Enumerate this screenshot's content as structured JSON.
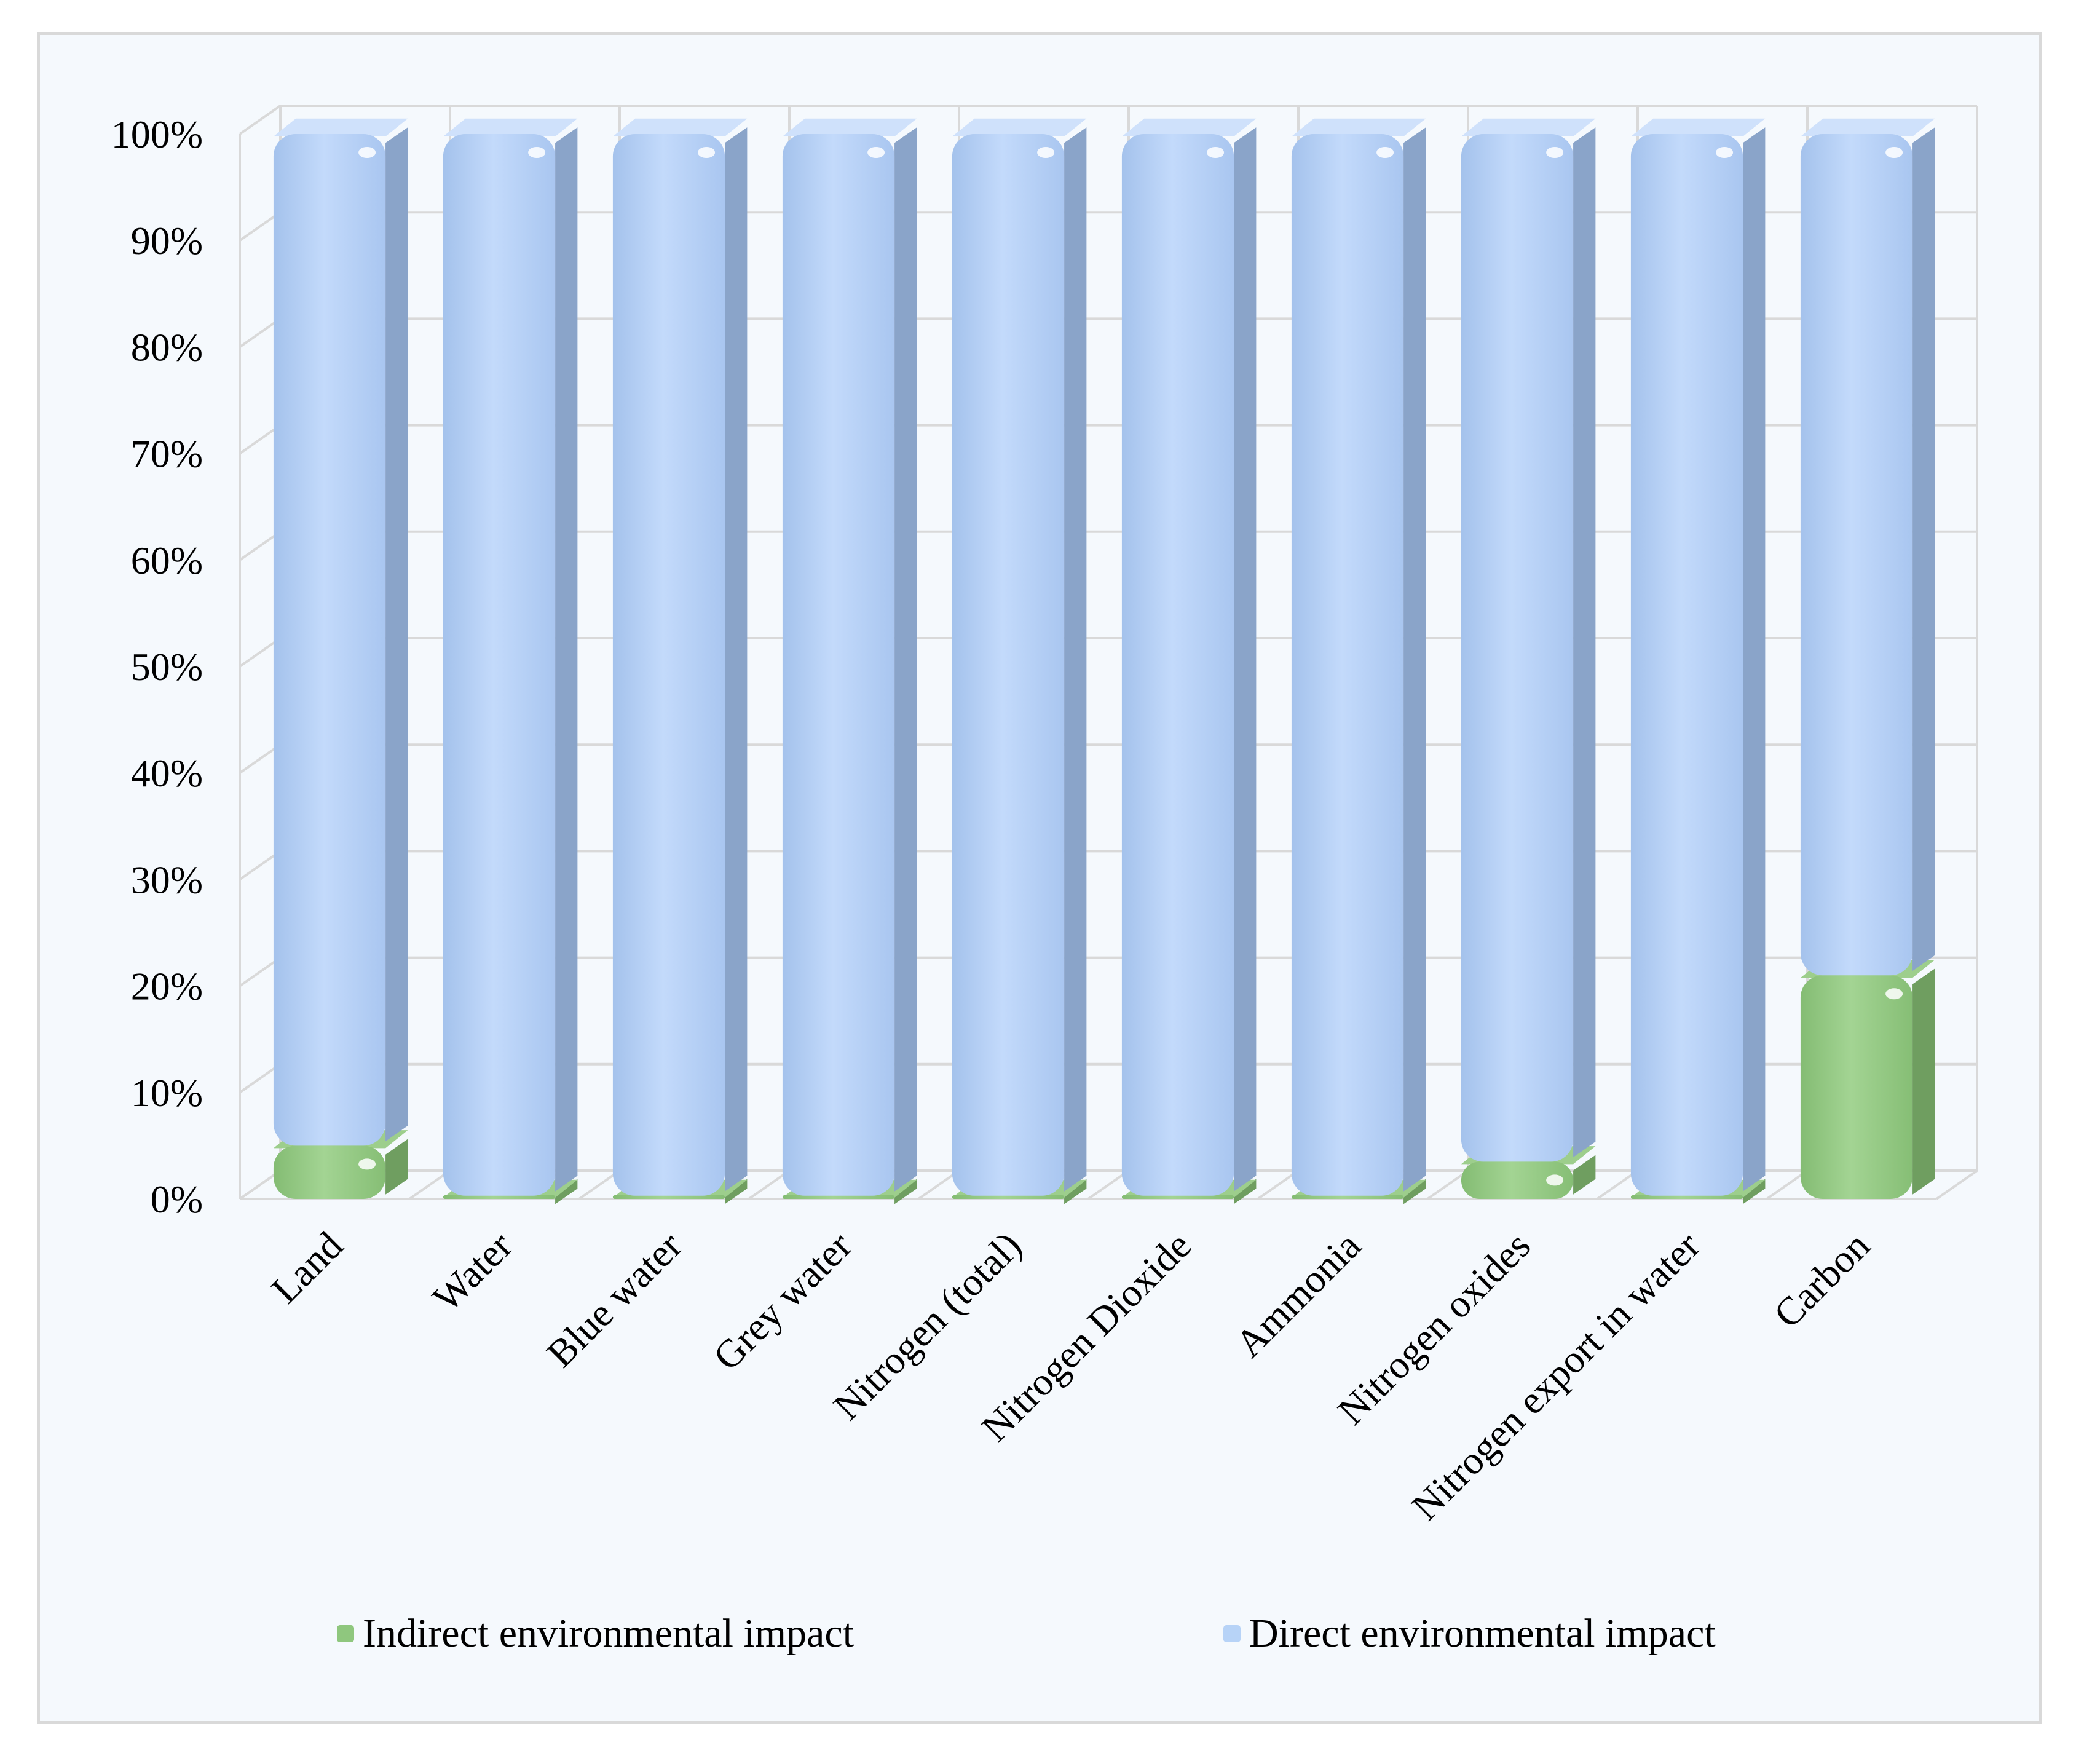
{
  "chart_data": {
    "type": "bar",
    "stacked": "percent",
    "three_d": true,
    "categories": [
      "Land",
      "Water",
      "Blue water",
      "Grey water",
      "Nitrogen (total)",
      "Nitrogen Dioxide",
      "Ammonia",
      "Nitrogen oxides",
      "Nitrogen export in water",
      "Carbon"
    ],
    "series": [
      {
        "name": "Indirect environmental impact",
        "color": "#8fc77e",
        "values": [
          5,
          0.3,
          0.3,
          0.3,
          0.3,
          0.3,
          0.3,
          3.5,
          0.3,
          21
        ]
      },
      {
        "name": "Direct environmental impact",
        "color": "#b7d3f7",
        "values": [
          95,
          99.7,
          99.7,
          99.7,
          99.7,
          99.7,
          99.7,
          96.5,
          99.7,
          79
        ]
      }
    ],
    "yticks": [
      "0%",
      "10%",
      "20%",
      "30%",
      "40%",
      "50%",
      "60%",
      "70%",
      "80%",
      "90%",
      "100%"
    ],
    "ylim": [
      0,
      100
    ],
    "grid": true,
    "legend_position": "bottom",
    "title": "",
    "xlabel": "",
    "ylabel": ""
  }
}
